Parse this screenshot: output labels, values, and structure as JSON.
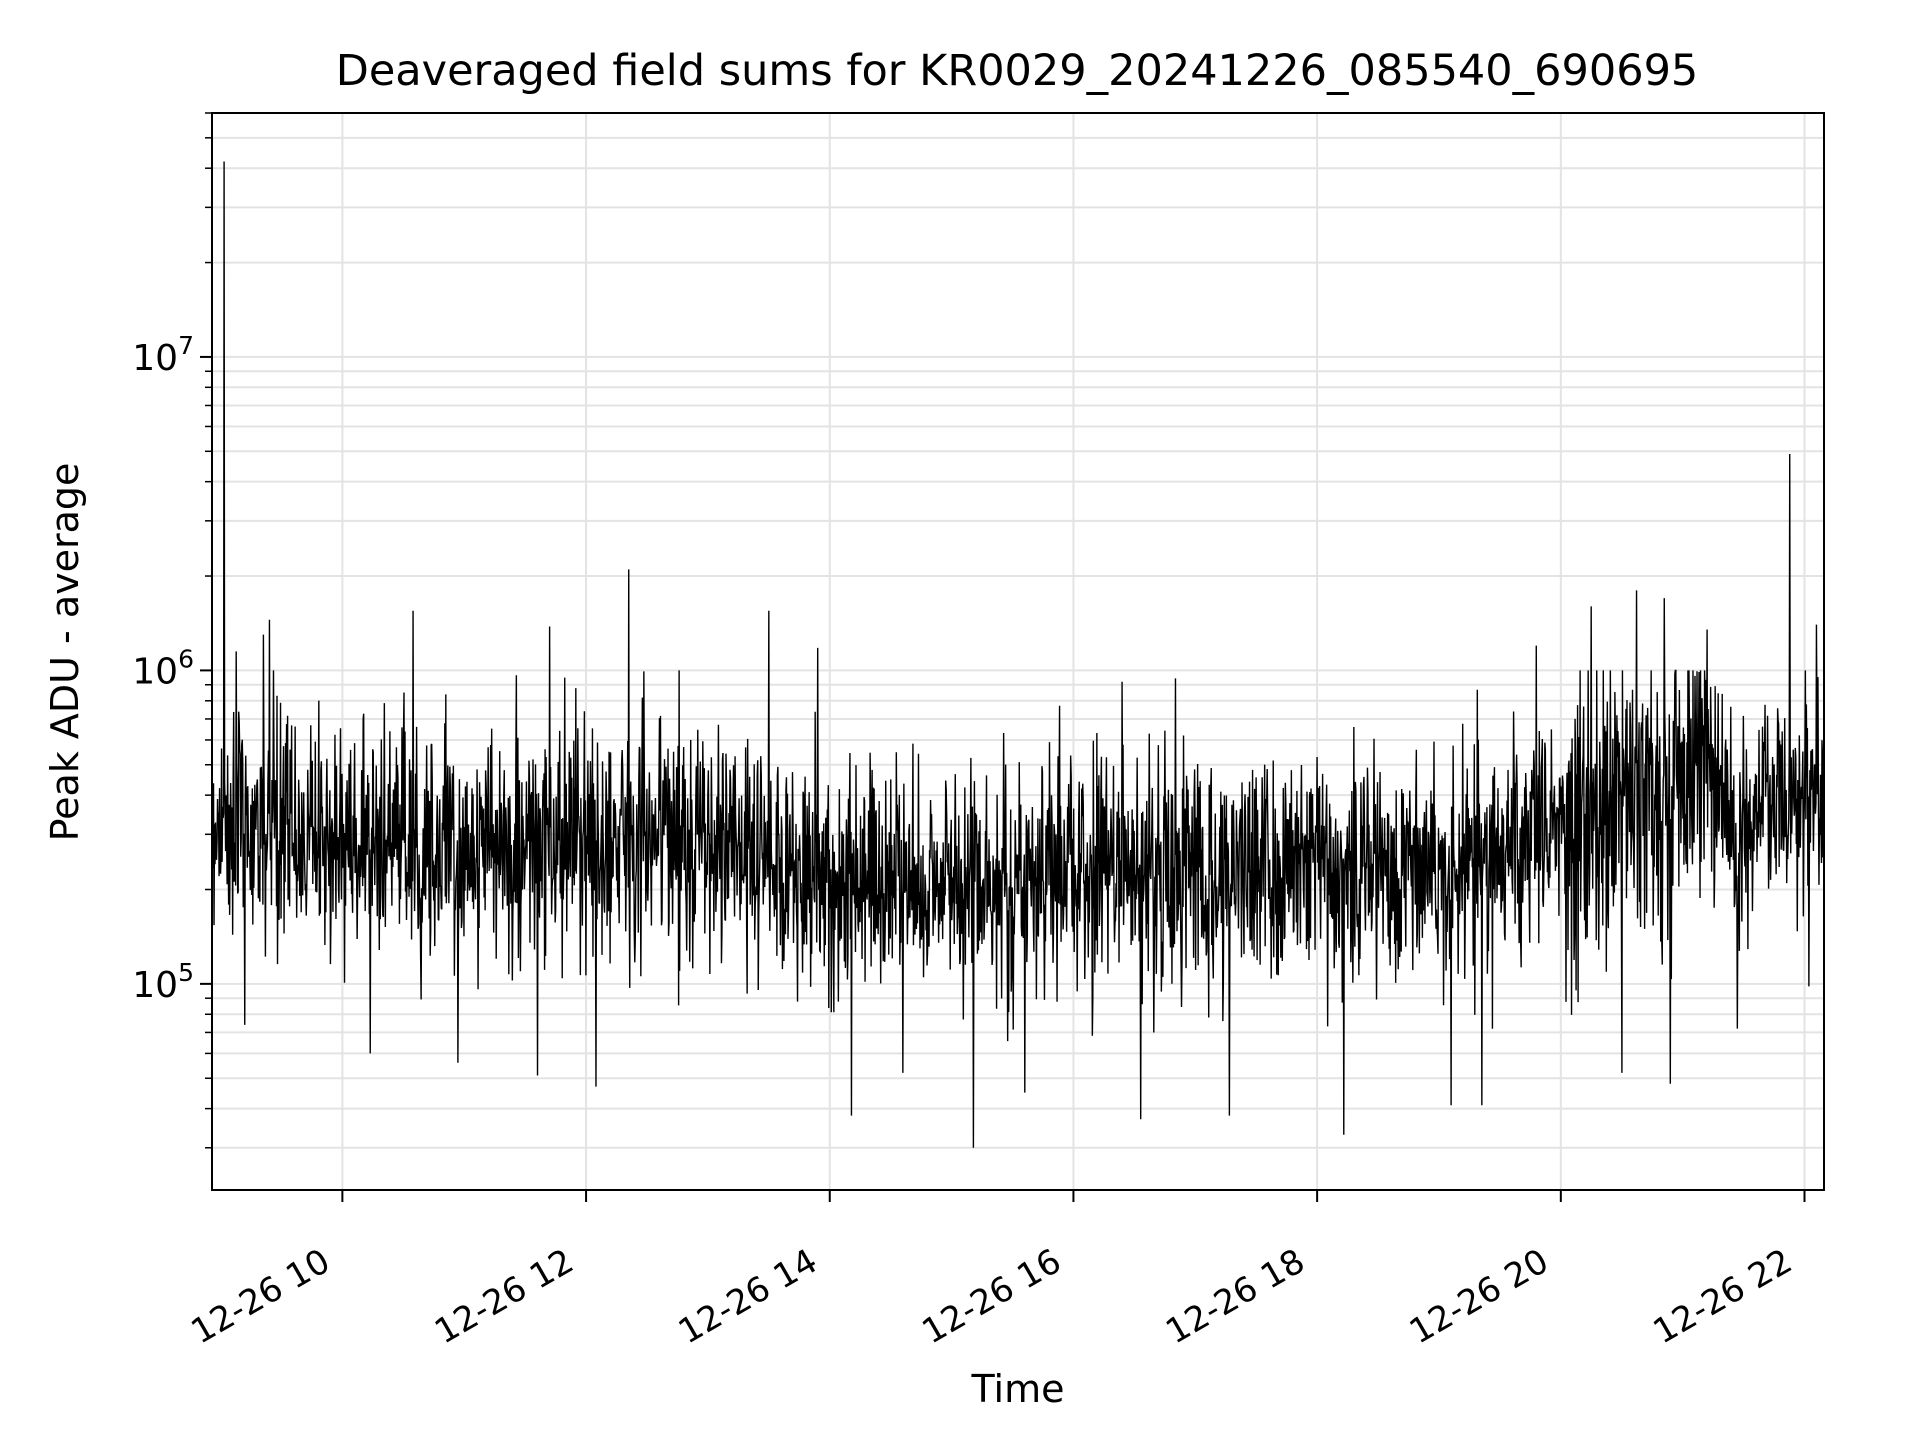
{
  "chart_data": {
    "type": "line",
    "title": "Deaveraged field sums for KR0029_20241226_085540_690695",
    "xlabel": "Time",
    "ylabel": "Peak ADU - average",
    "yscale": "log",
    "xlim_hours": [
      8.93,
      22.16
    ],
    "ylim": [
      22000,
      60000000
    ],
    "grid": true,
    "x_ticks": [
      {
        "hour": 10,
        "label": "12-26 10"
      },
      {
        "hour": 12,
        "label": "12-26 12"
      },
      {
        "hour": 14,
        "label": "12-26 14"
      },
      {
        "hour": 16,
        "label": "12-26 16"
      },
      {
        "hour": 18,
        "label": "12-26 18"
      },
      {
        "hour": 20,
        "label": "12-26 20"
      },
      {
        "hour": 22,
        "label": "12-26 22"
      }
    ],
    "y_ticks": [
      {
        "value": 100000,
        "base": "10",
        "exp": "5"
      },
      {
        "value": 1000000,
        "base": "10",
        "exp": "6"
      },
      {
        "value": 10000000,
        "base": "10",
        "exp": "7"
      }
    ],
    "series": [
      {
        "name": "Peak ADU - average",
        "color": "#000000",
        "baseline": [
          [
            8.93,
            330000
          ],
          [
            10.0,
            290000
          ],
          [
            11.0,
            270000
          ],
          [
            12.0,
            270000
          ],
          [
            12.4,
            320000
          ],
          [
            13.0,
            280000
          ],
          [
            14.0,
            220000
          ],
          [
            15.0,
            210000
          ],
          [
            16.0,
            230000
          ],
          [
            17.0,
            230000
          ],
          [
            18.0,
            240000
          ],
          [
            19.0,
            240000
          ],
          [
            19.8,
            270000
          ],
          [
            20.3,
            380000
          ],
          [
            20.8,
            420000
          ],
          [
            21.2,
            480000
          ],
          [
            21.5,
            330000
          ],
          [
            21.8,
            400000
          ],
          [
            22.16,
            470000
          ]
        ],
        "spikes": [
          [
            9.03,
            42000000
          ],
          [
            9.13,
            1150000
          ],
          [
            9.35,
            1300000
          ],
          [
            9.4,
            1450000
          ],
          [
            10.58,
            1550000
          ],
          [
            11.7,
            1380000
          ],
          [
            12.35,
            2100000
          ],
          [
            13.5,
            1550000
          ],
          [
            13.9,
            1180000
          ],
          [
            16.4,
            920000
          ],
          [
            19.8,
            1200000
          ],
          [
            20.25,
            1600000
          ],
          [
            20.62,
            1800000
          ],
          [
            20.85,
            1700000
          ],
          [
            21.2,
            1350000
          ],
          [
            21.88,
            4900000
          ],
          [
            22.1,
            1400000
          ]
        ],
        "dips": [
          [
            9.2,
            74000
          ],
          [
            10.95,
            56000
          ],
          [
            11.6,
            51000
          ],
          [
            12.08,
            47000
          ],
          [
            14.18,
            38000
          ],
          [
            14.6,
            52000
          ],
          [
            15.18,
            30000
          ],
          [
            15.6,
            45000
          ],
          [
            16.55,
            37000
          ],
          [
            17.28,
            38000
          ],
          [
            18.22,
            33000
          ],
          [
            19.1,
            41000
          ],
          [
            19.35,
            41000
          ],
          [
            20.5,
            52000
          ],
          [
            20.9,
            48000
          ],
          [
            21.45,
            72000
          ]
        ]
      }
    ]
  }
}
